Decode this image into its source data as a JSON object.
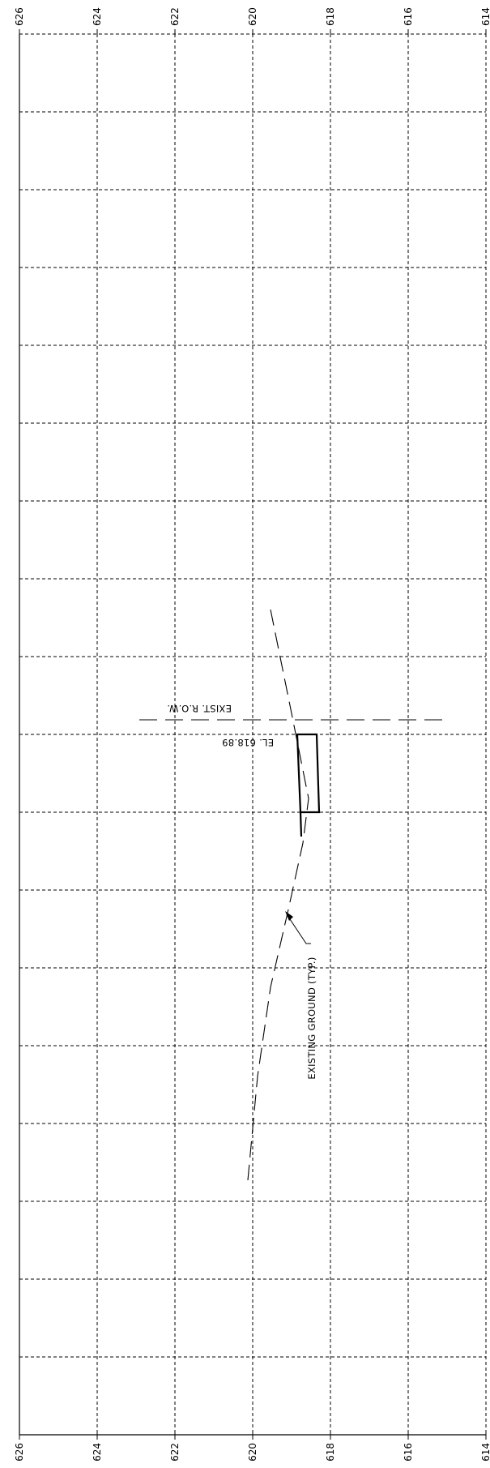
{
  "elevation_axis": {
    "ticks": [
      "626",
      "624",
      "622",
      "620",
      "618",
      "616",
      "614"
    ]
  },
  "annotations": {
    "row_label": "EXIST. R.O.W.",
    "elevation_label": "EL. 618.89",
    "ground_label": "EXISTING GROUND (TYP.)"
  },
  "colors": {
    "line": "#000000",
    "background": "#ffffff"
  }
}
